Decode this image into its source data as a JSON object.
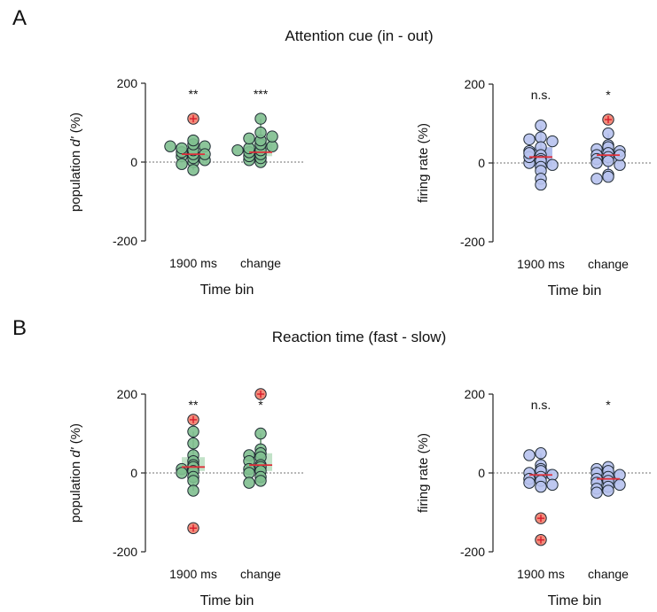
{
  "colors": {
    "green_fill": "#7fbf8f",
    "green_box": "#a8d5b0",
    "green_edge": "#2f6b3c",
    "blue_fill": "#b7c2ee",
    "blue_box": "#8fa0e2",
    "blue_edge": "#3a4a9c",
    "median": "#e0303a",
    "outlier_fill": "#f28b7a",
    "outlier_cross": "#d81b2a"
  },
  "panels": [
    {
      "label": "A",
      "title": "Attention cue (in - out)",
      "charts": [
        {
          "type": "scatter",
          "style": "green",
          "ylabel_pre": "population ",
          "ylabel_italic": "d'",
          "ylabel_post": " (%)",
          "xlabel": "Time bin",
          "yticks": [
            "200",
            "0",
            "-200"
          ],
          "ylim": [
            -200,
            200
          ],
          "categories": [
            "1900 ms",
            "change"
          ],
          "significance": [
            "**",
            "***"
          ],
          "groups": [
            {
              "points": [
                0,
                10,
                15,
                20,
                25,
                30,
                35,
                40,
                45,
                55,
                -5,
                -20,
                5,
                20,
                40
              ],
              "outliers": [
                110
              ],
              "q1": 5,
              "median": 20,
              "q3": 35,
              "whisker_low": -20,
              "whisker_high": 55
            },
            {
              "points": [
                0,
                5,
                10,
                15,
                20,
                25,
                30,
                35,
                40,
                45,
                55,
                60,
                65,
                75,
                110,
                30
              ],
              "outliers": [],
              "q1": 15,
              "median": 25,
              "q3": 60,
              "whisker_low": 0,
              "whisker_high": 110
            }
          ]
        },
        {
          "type": "scatter",
          "style": "blue",
          "ylabel_pre": "firing rate (%)",
          "ylabel_italic": "",
          "ylabel_post": "",
          "xlabel": "Time bin",
          "yticks": [
            "200",
            "0",
            "-200"
          ],
          "ylim": [
            -200,
            200
          ],
          "categories": [
            "1900 ms",
            "change"
          ],
          "significance": [
            "n.s.",
            "*"
          ],
          "groups": [
            {
              "points": [
                95,
                65,
                60,
                55,
                40,
                30,
                20,
                10,
                5,
                0,
                -5,
                -10,
                -20,
                -40,
                -55,
                15,
                25
              ],
              "outliers": [],
              "q1": -10,
              "median": 15,
              "q3": 40,
              "whisker_low": -55,
              "whisker_high": 95
            },
            {
              "points": [
                75,
                45,
                40,
                35,
                30,
                25,
                20,
                15,
                10,
                5,
                0,
                -5,
                -30,
                -35,
                -40,
                20
              ],
              "outliers": [
                110
              ],
              "q1": 5,
              "median": 20,
              "q3": 35,
              "whisker_low": -40,
              "whisker_high": 75
            }
          ]
        }
      ]
    },
    {
      "label": "B",
      "title": "Reaction time (fast - slow)",
      "charts": [
        {
          "type": "scatter",
          "style": "green",
          "ylabel_pre": "population ",
          "ylabel_italic": "d'",
          "ylabel_post": " (%)",
          "xlabel": "Time bin",
          "yticks": [
            "200",
            "0",
            "-200"
          ],
          "ylim": [
            -200,
            200
          ],
          "categories": [
            "1900 ms",
            "change"
          ],
          "significance": [
            "**",
            "*"
          ],
          "groups": [
            {
              "points": [
                105,
                75,
                45,
                30,
                20,
                15,
                10,
                5,
                0,
                -10,
                -20,
                -45
              ],
              "outliers": [
                135,
                -140
              ],
              "q1": 5,
              "median": 15,
              "q3": 40,
              "whisker_low": -45,
              "whisker_high": 105
            },
            {
              "points": [
                100,
                60,
                50,
                45,
                40,
                30,
                20,
                15,
                10,
                5,
                0,
                -10,
                -20,
                -25
              ],
              "outliers": [
                200
              ],
              "q1": 5,
              "median": 20,
              "q3": 50,
              "whisker_low": -25,
              "whisker_high": 100
            }
          ]
        },
        {
          "type": "scatter",
          "style": "blue",
          "ylabel_pre": "firing rate (%)",
          "ylabel_italic": "",
          "ylabel_post": "",
          "xlabel": "Time bin",
          "yticks": [
            "200",
            "0",
            "-200"
          ],
          "ylim": [
            -200,
            200
          ],
          "categories": [
            "1900 ms",
            "change"
          ],
          "significance": [
            "n.s.",
            "*"
          ],
          "groups": [
            {
              "points": [
                50,
                45,
                20,
                10,
                5,
                0,
                -5,
                -10,
                -15,
                -20,
                -25,
                -30,
                -35
              ],
              "outliers": [
                -115,
                -170
              ],
              "q1": -15,
              "median": -5,
              "q3": 10,
              "whisker_low": -35,
              "whisker_high": 50
            },
            {
              "points": [
                15,
                10,
                5,
                0,
                -5,
                -10,
                -15,
                -20,
                -25,
                -30,
                -35,
                -40,
                -45,
                -50
              ],
              "outliers": [],
              "q1": -30,
              "median": -15,
              "q3": 5,
              "whisker_low": -50,
              "whisker_high": 15
            }
          ]
        }
      ]
    }
  ],
  "chart_data": [
    {
      "type": "scatter",
      "panel": "A",
      "ylabel": "population d' (%)",
      "xlabel": "Time bin",
      "categories": [
        "1900 ms",
        "change"
      ],
      "ylim": [
        -200,
        200
      ],
      "series": [
        {
          "values": [
            [
              0,
              10,
              15,
              20,
              25,
              30,
              35,
              40,
              45,
              55,
              -5,
              -20,
              5,
              20,
              40,
              110
            ],
            [
              0,
              5,
              10,
              15,
              20,
              25,
              30,
              35,
              40,
              45,
              55,
              60,
              65,
              75,
              110,
              30
            ]
          ]
        }
      ],
      "annotations": [
        "**",
        "***"
      ]
    },
    {
      "type": "scatter",
      "panel": "A",
      "ylabel": "firing rate (%)",
      "xlabel": "Time bin",
      "categories": [
        "1900 ms",
        "change"
      ],
      "ylim": [
        -200,
        200
      ],
      "series": [
        {
          "values": [
            [
              95,
              65,
              60,
              55,
              40,
              30,
              20,
              10,
              5,
              0,
              -5,
              -10,
              -20,
              -40,
              -55,
              15,
              25
            ],
            [
              75,
              45,
              40,
              35,
              30,
              25,
              20,
              15,
              10,
              5,
              0,
              -5,
              -30,
              -35,
              -40,
              20,
              110
            ]
          ]
        }
      ],
      "annotations": [
        "n.s.",
        "*"
      ]
    },
    {
      "type": "scatter",
      "panel": "B",
      "ylabel": "population d' (%)",
      "xlabel": "Time bin",
      "categories": [
        "1900 ms",
        "change"
      ],
      "ylim": [
        -200,
        200
      ],
      "series": [
        {
          "values": [
            [
              105,
              75,
              45,
              30,
              20,
              15,
              10,
              5,
              0,
              -10,
              -20,
              -45,
              135,
              -140
            ],
            [
              100,
              60,
              50,
              45,
              40,
              30,
              20,
              15,
              10,
              5,
              0,
              -10,
              -20,
              -25,
              200
            ]
          ]
        }
      ],
      "annotations": [
        "**",
        "*"
      ]
    },
    {
      "type": "scatter",
      "panel": "B",
      "ylabel": "firing rate (%)",
      "xlabel": "Time bin",
      "categories": [
        "1900 ms",
        "change"
      ],
      "ylim": [
        -200,
        200
      ],
      "series": [
        {
          "values": [
            [
              50,
              45,
              20,
              10,
              5,
              0,
              -5,
              -10,
              -15,
              -20,
              -25,
              -30,
              -35,
              -115,
              -170
            ],
            [
              15,
              10,
              5,
              0,
              -5,
              -10,
              -15,
              -20,
              -25,
              -30,
              -35,
              -40,
              -45,
              -50
            ]
          ]
        }
      ],
      "annotations": [
        "n.s.",
        "*"
      ]
    }
  ]
}
